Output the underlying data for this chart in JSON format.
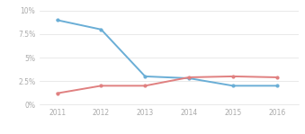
{
  "years": [
    2011,
    2012,
    2013,
    2014,
    2015,
    2016
  ],
  "school_values": [
    0.09,
    0.08,
    0.03,
    0.028,
    0.02,
    0.02
  ],
  "state_values": [
    0.012,
    0.02,
    0.02,
    0.029,
    0.03,
    0.029
  ],
  "school_color": "#6aaed6",
  "state_color": "#e08080",
  "ylim": [
    0,
    0.1
  ],
  "yticks": [
    0,
    0.025,
    0.05,
    0.075,
    0.1
  ],
  "ytick_labels": [
    "0%",
    "2.5%",
    "5%",
    "7.5%",
    "10%"
  ],
  "xlim": [
    2010.6,
    2016.5
  ],
  "background_color": "#ffffff",
  "grid_color": "#e0e0e0",
  "tick_color": "#aaaaaa",
  "legend_text_color": "#888888",
  "tick_fontsize": 5.5,
  "legend_fontsize": 4.8,
  "linewidth": 1.4,
  "markersize": 2.0
}
